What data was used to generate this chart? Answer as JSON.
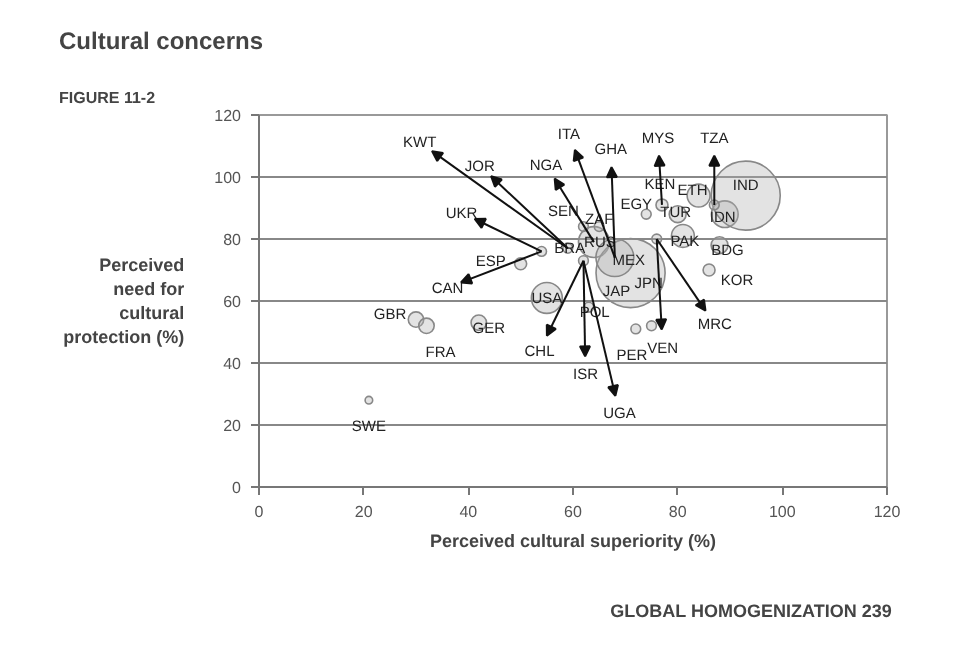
{
  "chart_data": {
    "type": "bubble",
    "title": "Cultural concerns",
    "subtitle": "FIGURE 11-2",
    "xlabel": "Perceived cultural superiority (%)",
    "ylabel": "Perceived\nneed for\ncultural\nprotection (%)",
    "xlim": [
      0,
      120
    ],
    "xticks": [
      0,
      20,
      40,
      60,
      80,
      100,
      120
    ],
    "ylim": [
      0,
      120
    ],
    "yticks": [
      0,
      20,
      40,
      60,
      80,
      100,
      120
    ],
    "grid": "y",
    "series": [
      {
        "color": "#b0b0b0",
        "x": [
          21,
          30,
          32,
          42,
          50,
          54,
          55,
          64,
          63,
          71,
          68,
          72,
          75,
          74,
          77,
          80,
          81,
          89,
          88,
          86,
          93,
          84,
          87,
          62,
          65,
          59,
          76,
          62
        ],
        "values": [
          28,
          54,
          52,
          53,
          72,
          76,
          61,
          79,
          58,
          69,
          74,
          51,
          52,
          88,
          91,
          88,
          81,
          88,
          78,
          70,
          94,
          94,
          91,
          84,
          84,
          77,
          80,
          73
        ],
        "sizes": [
          0.012,
          0.05,
          0.05,
          0.05,
          0.03,
          0.02,
          0.2,
          0.2,
          0.02,
          1,
          0.3,
          0.02,
          0.02,
          0.02,
          0.03,
          0.06,
          0.11,
          0.15,
          0.06,
          0.03,
          1,
          0.11,
          0.02,
          0.02,
          0.02,
          0.02,
          0.02,
          0.02
        ]
      }
    ],
    "annotations": [
      {
        "text": "KWT",
        "x": 59,
        "y": 77
      },
      {
        "text": "JOR",
        "x": 59,
        "y": 77
      },
      {
        "text": "NGA",
        "x": 64,
        "y": 79
      },
      {
        "text": "ITA",
        "x": 68,
        "y": 74
      },
      {
        "text": "GHA",
        "x": 68,
        "y": 74
      },
      {
        "text": "MYS",
        "x": 77,
        "y": 91
      },
      {
        "text": "TZA",
        "x": 87,
        "y": 91
      },
      {
        "text": "KEN",
        "x": 77,
        "y": 91
      },
      {
        "text": "ETH",
        "x": 84,
        "y": 94
      },
      {
        "text": "IND",
        "x": 93,
        "y": 94
      },
      {
        "text": "EGY",
        "x": 74,
        "y": 88
      },
      {
        "text": "TUR",
        "x": 80,
        "y": 88
      },
      {
        "text": "IDN",
        "x": 89,
        "y": 88
      },
      {
        "text": "PAK",
        "x": 81,
        "y": 81
      },
      {
        "text": "BDG",
        "x": 88,
        "y": 78
      },
      {
        "text": "KOR",
        "x": 86,
        "y": 70
      },
      {
        "text": "SEN",
        "x": 62,
        "y": 84
      },
      {
        "text": "ZAF",
        "x": 65,
        "y": 84
      },
      {
        "text": "UKR",
        "x": 54,
        "y": 76
      },
      {
        "text": "BRA",
        "x": 59,
        "y": 77
      },
      {
        "text": "RUS",
        "x": 64,
        "y": 79
      },
      {
        "text": "MEX",
        "x": 68,
        "y": 74
      },
      {
        "text": "ESP",
        "x": 50,
        "y": 72
      },
      {
        "text": "CAN",
        "x": 54,
        "y": 76
      },
      {
        "text": "JAP",
        "x": 71,
        "y": 69
      },
      {
        "text": "JPN",
        "x": 71,
        "y": 69
      },
      {
        "text": "USA",
        "x": 55,
        "y": 61
      },
      {
        "text": "POL",
        "x": 63,
        "y": 58
      },
      {
        "text": "MRC",
        "x": 76,
        "y": 80
      },
      {
        "text": "GBR",
        "x": 30,
        "y": 54
      },
      {
        "text": "GER",
        "x": 42,
        "y": 53
      },
      {
        "text": "FRA",
        "x": 32,
        "y": 52
      },
      {
        "text": "CHL",
        "x": 62,
        "y": 73
      },
      {
        "text": "VEN",
        "x": 76,
        "y": 80
      },
      {
        "text": "PER",
        "x": 72,
        "y": 51
      },
      {
        "text": "ISR",
        "x": 62,
        "y": 73
      },
      {
        "text": "UGA",
        "x": 62,
        "y": 73
      },
      {
        "text": "SWE",
        "x": 21,
        "y": 28
      },
      "GLOBAL HOMOGENIZATION    239"
    ]
  }
}
